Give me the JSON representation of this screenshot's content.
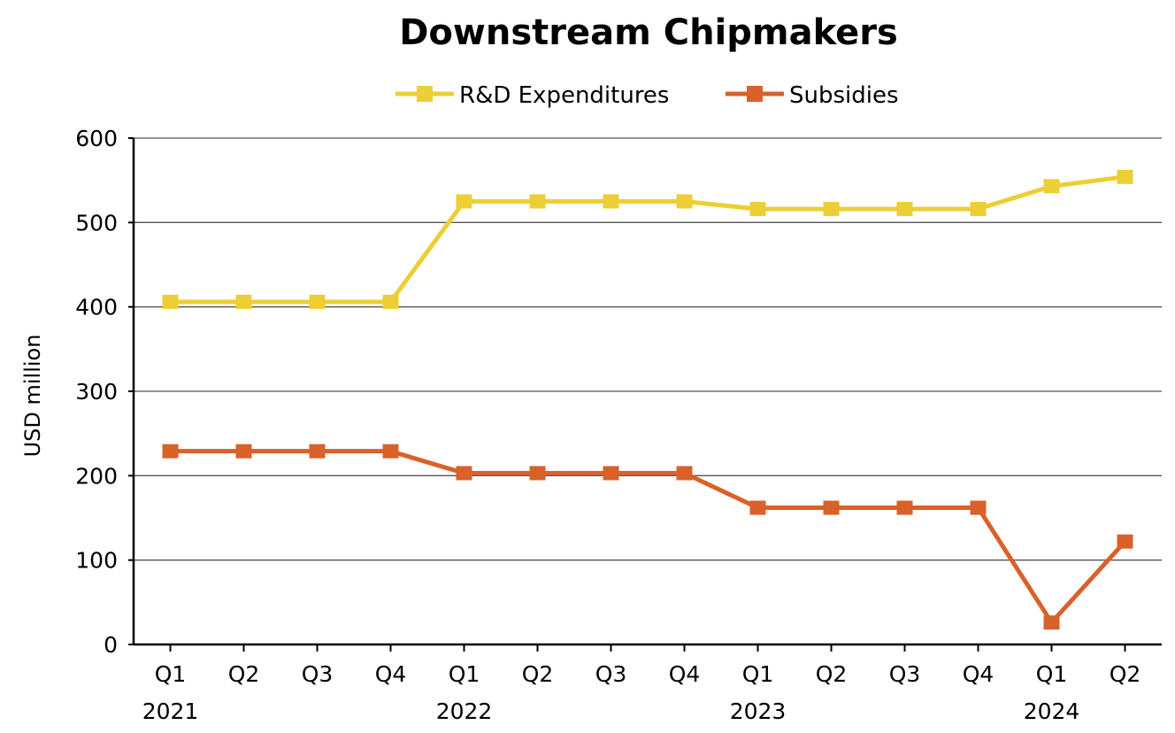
{
  "chart_data": {
    "type": "line",
    "title": "Downstream Chipmakers",
    "ylabel": "USD million",
    "xlabel": "",
    "ylim": [
      0,
      600
    ],
    "yticks": [
      0,
      100,
      200,
      300,
      400,
      500,
      600
    ],
    "grid": true,
    "legend_position": "top",
    "categories": [
      "Q1",
      "Q2",
      "Q3",
      "Q4",
      "Q1",
      "Q2",
      "Q3",
      "Q4",
      "Q1",
      "Q2",
      "Q3",
      "Q4",
      "Q1",
      "Q2"
    ],
    "year_labels": [
      "2021",
      "",
      "",
      "",
      "2022",
      "",
      "",
      "",
      "2023",
      "",
      "",
      "",
      "2024",
      ""
    ],
    "series": [
      {
        "name": "R&D Expenditures",
        "color": "#EDCE35",
        "marker": "square",
        "values": [
          406,
          406,
          406,
          406,
          525,
          525,
          525,
          525,
          516,
          516,
          516,
          516,
          543,
          554
        ]
      },
      {
        "name": "Subsidies",
        "color": "#D9612A",
        "marker": "square",
        "values": [
          229,
          229,
          229,
          229,
          203,
          203,
          203,
          203,
          162,
          162,
          162,
          162,
          26,
          122
        ]
      }
    ]
  }
}
